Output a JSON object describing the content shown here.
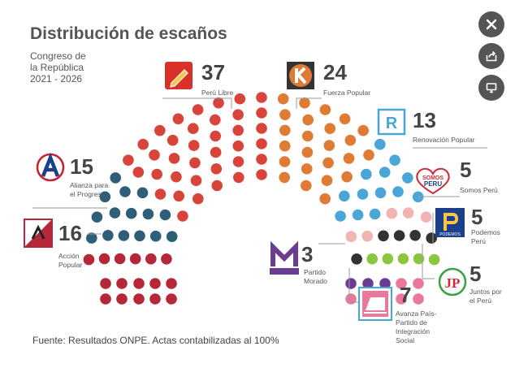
{
  "title": "Distribución de escaños",
  "subtitle": "Congreso de\nla República\n2021 - 2026",
  "source": "Fuente: Resultados ONPE. Actas contabilizadas al 100%",
  "controls": [
    "close-icon",
    "share-icon",
    "present-icon"
  ],
  "chart_data": {
    "type": "parliament",
    "title": "Distribución de escaños",
    "subtitle": "Congreso de la República 2021 - 2026",
    "total_seats": 130,
    "series": [
      {
        "name": "Acción Popular",
        "seats": 16,
        "color": "#b5283a",
        "logo": "AP",
        "logo_name": "accion-popular-logo"
      },
      {
        "name": "Alianza para el Progreso",
        "seats": 15,
        "color": "#2f5f78",
        "logo": "A",
        "logo_name": "alianza-logo"
      },
      {
        "name": "Perú Libre",
        "seats": 37,
        "color": "#d9443a",
        "logo": "pencil",
        "logo_name": "pencil-logo"
      },
      {
        "name": "Fuerza Popular",
        "seats": 24,
        "color": "#e07b35",
        "logo": "K",
        "logo_name": "k-logo"
      },
      {
        "name": "Renovación Popular",
        "seats": 13,
        "color": "#4aa6d6",
        "logo": "R",
        "logo_name": "r-logo"
      },
      {
        "name": "Somos Perú",
        "seats": 5,
        "color": "#f2b3b3",
        "logo": "SOMOS PERU",
        "logo_name": "heart-logo"
      },
      {
        "name": "Podemos Perú",
        "seats": 5,
        "color": "#333333",
        "logo": "PODEMOS",
        "logo_name": "podemos-logo"
      },
      {
        "name": "Juntos por el Perú",
        "seats": 5,
        "color": "#8cc63e",
        "logo": "JP",
        "logo_name": "jp-logo"
      },
      {
        "name": "Partido Morado",
        "seats": 3,
        "color": "#6a3d93",
        "logo": "M",
        "logo_name": "m-logo"
      },
      {
        "name": "Avanza País-Partido de Integración Social",
        "seats": 7,
        "color": "#e8799b",
        "logo": "train",
        "logo_name": "train-logo"
      }
    ],
    "labels": [
      {
        "name": "Acción Popular",
        "text": "Acción\nPopular",
        "seats": 16
      },
      {
        "name": "Alianza para el Progreso",
        "text": "Alianza para\nel Progreso",
        "seats": 15
      },
      {
        "name": "Perú Libre",
        "text": "Perú Libre",
        "seats": 37
      },
      {
        "name": "Fuerza Popular",
        "text": "Fuerza Popular",
        "seats": 24
      },
      {
        "name": "Renovación Popular",
        "text": "Renovación Popular",
        "seats": 13
      },
      {
        "name": "Somos Perú",
        "text": "Somos Perú",
        "seats": 5
      },
      {
        "name": "Podemos Perú",
        "text": "Podemos\nPerú",
        "seats": 5
      },
      {
        "name": "Juntos por el Perú",
        "text": "Juntos por\nel Perú",
        "seats": 5
      },
      {
        "name": "Partido Morado",
        "text": "Partido\nMorado",
        "seats": 3
      },
      {
        "name": "Avanza País-Partido de Integración Social",
        "text": "Avanza País-\nPartido de\nIntegración\nSocial",
        "seats": 7
      }
    ]
  }
}
